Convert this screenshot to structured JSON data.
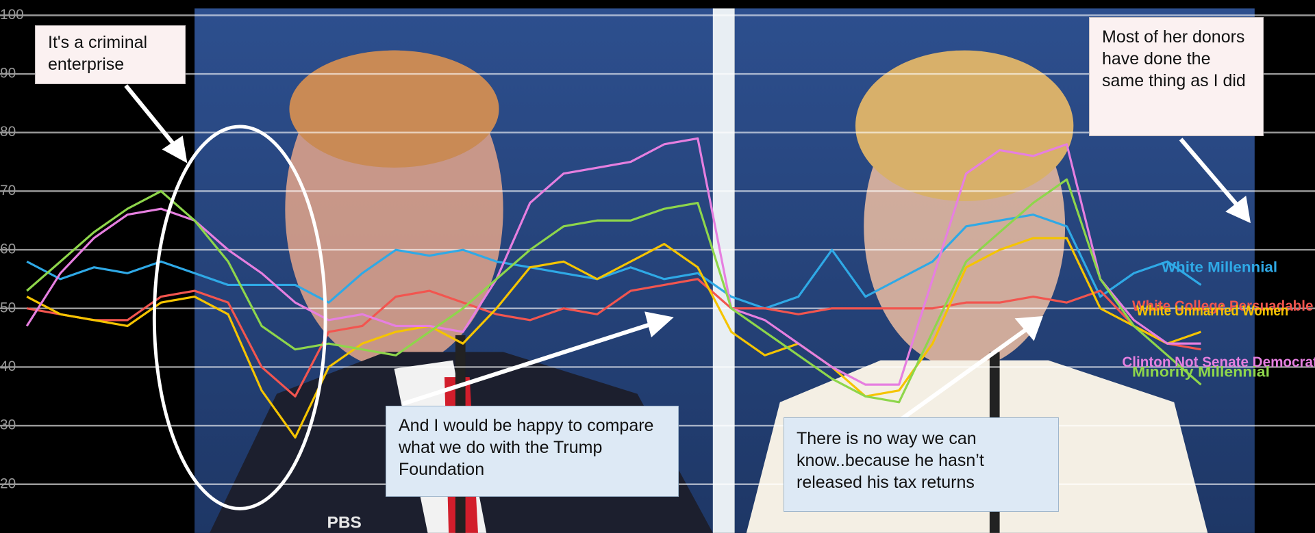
{
  "chart_data": {
    "type": "line",
    "ylim": [
      11.7,
      102.6
    ],
    "yticks": [
      20,
      30,
      40,
      50,
      60,
      70,
      80,
      90,
      100
    ],
    "grid": true,
    "series": [
      {
        "name": "White Millennial",
        "color": "#2fa9e6",
        "values": [
          58,
          55,
          57,
          56,
          58,
          56,
          54,
          54,
          54,
          51,
          56,
          60,
          59,
          60,
          58,
          57,
          56,
          55,
          57,
          55,
          56,
          52,
          50,
          52,
          60,
          52,
          55,
          58,
          64,
          65,
          66,
          64,
          52,
          56,
          58,
          54
        ]
      },
      {
        "name": "White College Persuadable",
        "color": "#f2554f",
        "values": [
          50,
          49,
          48,
          48,
          52,
          53,
          51,
          40,
          35,
          46,
          47,
          52,
          53,
          51,
          49,
          48,
          50,
          49,
          53,
          54,
          55,
          50,
          50,
          49,
          50,
          50,
          50,
          50,
          51,
          51,
          52,
          51,
          53,
          47,
          44,
          43
        ]
      },
      {
        "name": "White Unmarried Women",
        "color": "#f5c400",
        "values": [
          52,
          49,
          48,
          47,
          51,
          52,
          49,
          36,
          28,
          40,
          44,
          46,
          47,
          44,
          50,
          57,
          58,
          55,
          58,
          61,
          57,
          46,
          42,
          44,
          40,
          35,
          36,
          44,
          57,
          60,
          62,
          62,
          50,
          47,
          44,
          46
        ]
      },
      {
        "name": "Clinton Not Senate Democrat",
        "color": "#e67fe0",
        "values": [
          47,
          56,
          62,
          66,
          67,
          65,
          60,
          56,
          51,
          48,
          49,
          47,
          47,
          46,
          55,
          68,
          73,
          74,
          75,
          78,
          79,
          50,
          48,
          44,
          40,
          37,
          37,
          55,
          73,
          77,
          76,
          78,
          55,
          48,
          44,
          44
        ]
      },
      {
        "name": "Minority Millennial",
        "color": "#8ed64b",
        "values": [
          53,
          58,
          63,
          67,
          70,
          65,
          58,
          47,
          43,
          44,
          43,
          42,
          46,
          50,
          55,
          60,
          64,
          65,
          65,
          67,
          68,
          50,
          46,
          42,
          38,
          35,
          34,
          46,
          58,
          63,
          68,
          72,
          55,
          47,
          42,
          37
        ]
      }
    ],
    "annotations": [
      "It's a criminal enterprise",
      "And I would be happy to compare what we do with the Trump Foundation",
      "There is no way we can know..because he hasn’t released his tax returns",
      "Most of her donors have done the same thing as I did"
    ],
    "logo": "PBS"
  }
}
